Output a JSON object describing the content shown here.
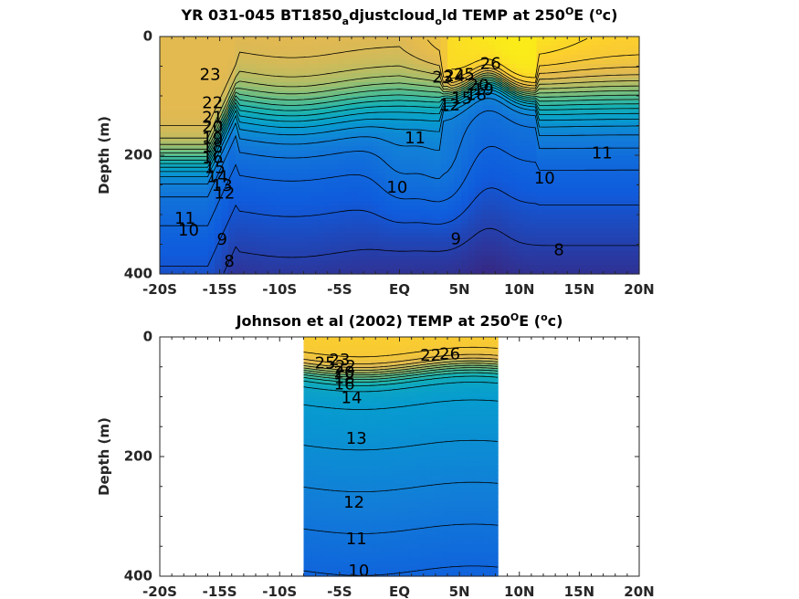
{
  "chart_data": [
    {
      "type": "heatmap",
      "subtype": "filled-contour",
      "title_parts": [
        "YR 031-045 BT1850",
        "a",
        "djustcloud",
        "o",
        "ld TEMP at 250",
        "O",
        "E (",
        "o",
        "c)"
      ],
      "ylabel": "Depth (m)",
      "xlabel": "",
      "xlim": [
        -20,
        20
      ],
      "ylim": [
        0,
        400
      ],
      "y_reversed": true,
      "xticks": [
        "-20S",
        "-15S",
        "-10S",
        "-5S",
        "EQ",
        "5N",
        "10N",
        "15N",
        "20N"
      ],
      "yticks": [
        "0",
        "200",
        "400"
      ],
      "colormap": "parula",
      "color_range": [
        7,
        28
      ],
      "data_extent": [
        -20,
        20
      ],
      "contour_labels": [
        {
          "text": "23",
          "x": -15.8,
          "y": 65
        },
        {
          "text": "22",
          "x": -15.6,
          "y": 113
        },
        {
          "text": "21",
          "x": -15.6,
          "y": 138
        },
        {
          "text": "20",
          "x": -15.6,
          "y": 153
        },
        {
          "text": "19",
          "x": -15.6,
          "y": 173
        },
        {
          "text": "18",
          "x": -15.6,
          "y": 187
        },
        {
          "text": "16",
          "x": -15.6,
          "y": 205
        },
        {
          "text": "15",
          "x": -15.4,
          "y": 222
        },
        {
          "text": "14",
          "x": -15.2,
          "y": 238
        },
        {
          "text": "13",
          "x": -14.8,
          "y": 252
        },
        {
          "text": "12",
          "x": -14.6,
          "y": 265
        },
        {
          "text": "11",
          "x": -17.9,
          "y": 308
        },
        {
          "text": "10",
          "x": -17.6,
          "y": 328
        },
        {
          "text": "9",
          "x": -14.8,
          "y": 343
        },
        {
          "text": "8",
          "x": -14.2,
          "y": 380
        },
        {
          "text": "10",
          "x": -0.2,
          "y": 255
        },
        {
          "text": "11",
          "x": 1.3,
          "y": 172
        },
        {
          "text": "9",
          "x": 4.7,
          "y": 342
        },
        {
          "text": "8",
          "x": 13.3,
          "y": 361
        },
        {
          "text": "10",
          "x": 12.1,
          "y": 240
        },
        {
          "text": "11",
          "x": 16.9,
          "y": 198
        },
        {
          "text": "23",
          "x": 3.6,
          "y": 70
        },
        {
          "text": "24",
          "x": 4.6,
          "y": 68
        },
        {
          "text": "25",
          "x": 5.4,
          "y": 65
        },
        {
          "text": "26",
          "x": 7.6,
          "y": 47
        },
        {
          "text": "15",
          "x": 5.2,
          "y": 105
        },
        {
          "text": "12",
          "x": 4.2,
          "y": 117
        },
        {
          "text": "20",
          "x": 6.6,
          "y": 83
        },
        {
          "text": "19",
          "x": 7.0,
          "y": 91
        },
        {
          "text": "18",
          "x": 6.4,
          "y": 99
        }
      ]
    },
    {
      "type": "heatmap",
      "subtype": "filled-contour",
      "title_parts": [
        "Johnson et al (2002) TEMP at 250",
        "O",
        "E (",
        "o",
        "c)"
      ],
      "ylabel": "Depth (m)",
      "xlabel": "",
      "xlim": [
        -20,
        20
      ],
      "ylim": [
        0,
        400
      ],
      "y_reversed": true,
      "xticks": [
        "-20S",
        "-15S",
        "-10S",
        "-5S",
        "EQ",
        "5N",
        "10N",
        "15N",
        "20N"
      ],
      "yticks": [
        "0",
        "200",
        "400"
      ],
      "colormap": "parula",
      "color_range": [
        7,
        28
      ],
      "data_extent": [
        -8,
        8.2
      ],
      "contour_labels": [
        {
          "text": "25",
          "x": -6.2,
          "y": 45
        },
        {
          "text": "23",
          "x": -5.0,
          "y": 40
        },
        {
          "text": "22",
          "x": -4.5,
          "y": 50
        },
        {
          "text": "20",
          "x": -4.6,
          "y": 60
        },
        {
          "text": "18",
          "x": -4.6,
          "y": 70
        },
        {
          "text": "16",
          "x": -4.6,
          "y": 80
        },
        {
          "text": "14",
          "x": -4.0,
          "y": 103
        },
        {
          "text": "13",
          "x": -3.6,
          "y": 171
        },
        {
          "text": "12",
          "x": -3.8,
          "y": 278
        },
        {
          "text": "11",
          "x": -3.6,
          "y": 339
        },
        {
          "text": "10",
          "x": -3.4,
          "y": 392
        },
        {
          "text": "22",
          "x": 2.6,
          "y": 32
        },
        {
          "text": "26",
          "x": 4.2,
          "y": 30
        }
      ]
    }
  ]
}
